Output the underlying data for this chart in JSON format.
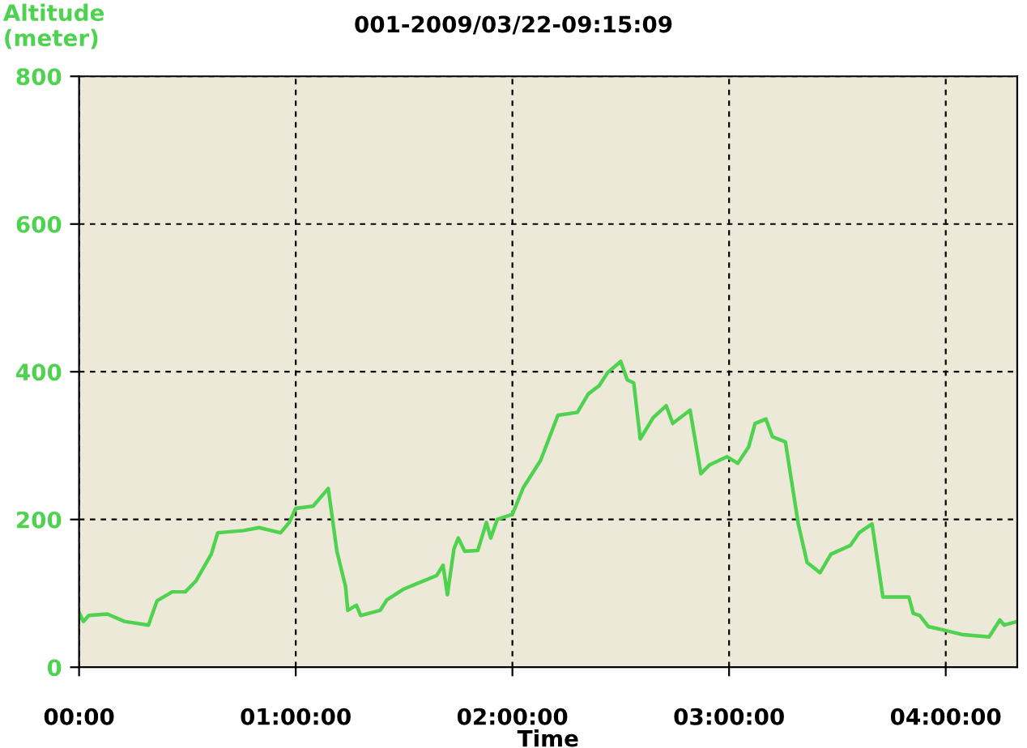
{
  "chart_data": {
    "type": "line",
    "title": "001-2009/03/22-09:15:09",
    "xlabel": "Time",
    "ylabel": "Altitude\n(meter)",
    "xlim": [
      0,
      4.33
    ],
    "xticks": [
      {
        "value": 0,
        "label": "00:00"
      },
      {
        "value": 1,
        "label": "01:00:00"
      },
      {
        "value": 2,
        "label": "02:00:00"
      },
      {
        "value": 3,
        "label": "03:00:00"
      },
      {
        "value": 4,
        "label": "04:00:00"
      }
    ],
    "ylim": [
      0,
      800
    ],
    "yticks": [
      0,
      200,
      400,
      600,
      800
    ],
    "grid": true,
    "line_style": "solid",
    "marker": "none",
    "series": [
      {
        "color": "#4fd24f",
        "x": [
          0.002,
          0.02,
          0.045,
          0.13,
          0.21,
          0.32,
          0.36,
          0.43,
          0.49,
          0.54,
          0.61,
          0.64,
          0.76,
          0.83,
          0.93,
          0.97,
          1.0,
          1.08,
          1.15,
          1.19,
          1.23,
          1.24,
          1.28,
          1.3,
          1.39,
          1.42,
          1.5,
          1.65,
          1.68,
          1.7,
          1.73,
          1.75,
          1.78,
          1.84,
          1.88,
          1.9,
          1.93,
          2.0,
          2.05,
          2.13,
          2.21,
          2.3,
          2.35,
          2.4,
          2.44,
          2.5,
          2.53,
          2.56,
          2.59,
          2.65,
          2.71,
          2.74,
          2.82,
          2.87,
          2.91,
          2.99,
          3.04,
          3.09,
          3.12,
          3.17,
          3.2,
          3.26,
          3.32,
          3.36,
          3.42,
          3.47,
          3.56,
          3.6,
          3.66,
          3.71,
          3.83,
          3.85,
          3.88,
          3.92,
          3.98,
          4.08,
          4.2,
          4.25,
          4.27,
          4.32
        ],
        "values": [
          73,
          62,
          70,
          72,
          62,
          57,
          90,
          102,
          102,
          117,
          153,
          182,
          185,
          189,
          182,
          196,
          215,
          218,
          242,
          157,
          109,
          77,
          84,
          70,
          77,
          91,
          106,
          124,
          138,
          98,
          160,
          175,
          157,
          158,
          196,
          175,
          200,
          207,
          243,
          280,
          341,
          345,
          370,
          381,
          399,
          414,
          389,
          385,
          309,
          338,
          354,
          330,
          348,
          262,
          274,
          285,
          276,
          298,
          330,
          336,
          312,
          305,
          193,
          142,
          128,
          153,
          165,
          182,
          194,
          95,
          95,
          73,
          70,
          55,
          51,
          44,
          41,
          64,
          57,
          61
        ]
      }
    ]
  }
}
